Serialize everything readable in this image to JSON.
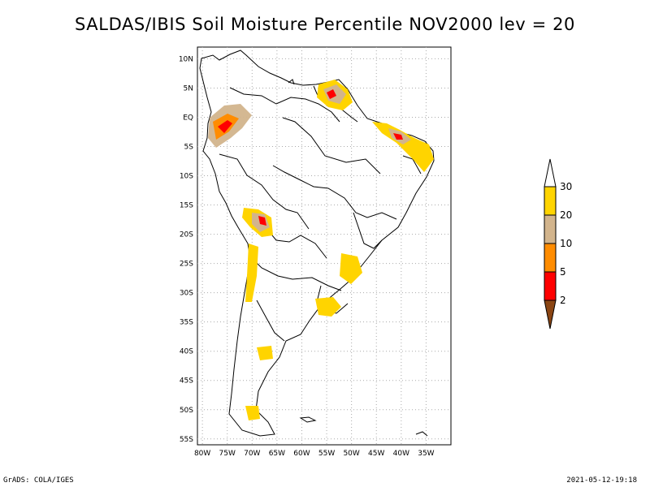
{
  "title": "SALDAS/IBIS Soil Moisture Percentile NOV2000 lev = 20",
  "footer": {
    "left": "GrADS: COLA/IGES",
    "right": "2021-05-12-19:18"
  },
  "map": {
    "lon_range": [
      -81,
      -30
    ],
    "lat_range": [
      -56,
      12
    ],
    "lat_labels": [
      "10N",
      "5N",
      "EQ",
      "5S",
      "10S",
      "15S",
      "20S",
      "25S",
      "30S",
      "35S",
      "40S",
      "45S",
      "50S",
      "55S"
    ],
    "lon_labels": [
      "80W",
      "75W",
      "70W",
      "65W",
      "60W",
      "55W",
      "50W",
      "45W",
      "40W",
      "35W"
    ],
    "grid": true
  },
  "legend": {
    "labels": [
      "30",
      "20",
      "10",
      "5",
      "2"
    ],
    "colors": [
      "#ffffff",
      "#ffd400",
      "#d2b48c",
      "#ff8c00",
      "#ff0000",
      "#8b4513"
    ]
  }
}
